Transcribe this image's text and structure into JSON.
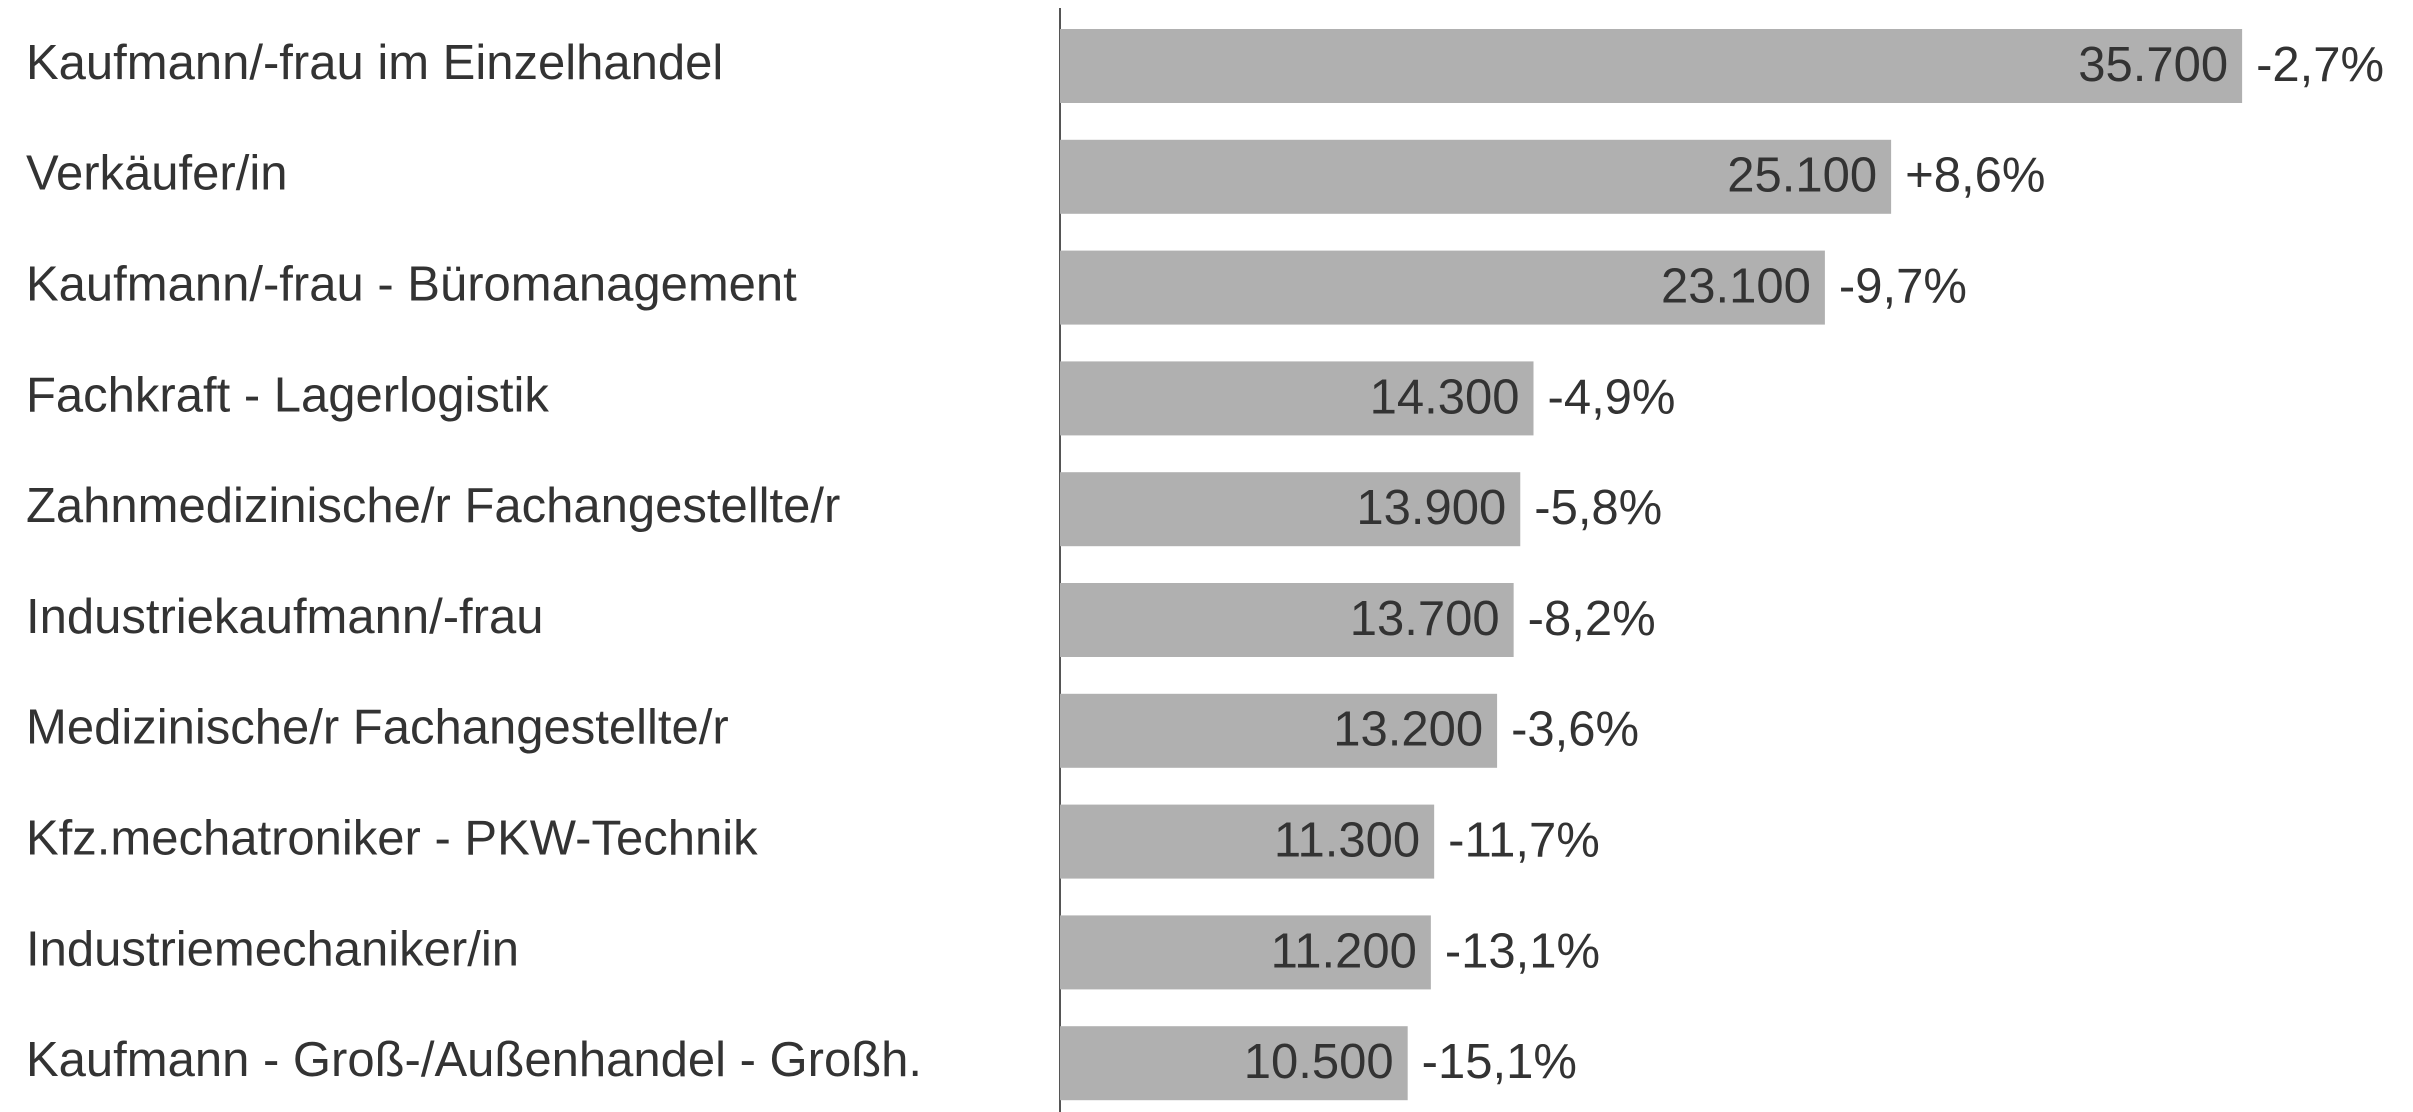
{
  "chart_data": {
    "type": "bar",
    "orientation": "horizontal",
    "categories": [
      "Kaufmann/-frau im Einzelhandel",
      "Verkäufer/in",
      "Kaufmann/-frau - Büromanagement",
      "Fachkraft - Lagerlogistik",
      "Zahnmedizinische/r Fachangestellte/r",
      "Industriekaufmann/-frau",
      "Medizinische/r Fachangestellte/r",
      "Kfz.mechatroniker - PKW-Technik",
      "Industriemechaniker/in",
      "Kaufmann - Groß-/Außenhandel - Großh."
    ],
    "values": [
      35700,
      25100,
      23100,
      14300,
      13900,
      13700,
      13200,
      11300,
      11200,
      10500
    ],
    "value_labels": [
      "35.700",
      "25.100",
      "23.100",
      "14.300",
      "13.900",
      "13.700",
      "13.200",
      "11.300",
      "11.200",
      "10.500"
    ],
    "annotations": [
      "-2,7%",
      "+8,6%",
      "-9,7%",
      "-4,9%",
      "-5,8%",
      "-8,2%",
      "-3,6%",
      "-11,7%",
      "-13,1%",
      "-15,1%"
    ],
    "color": "#b0b0b0",
    "xlim": [
      0,
      40000
    ]
  }
}
